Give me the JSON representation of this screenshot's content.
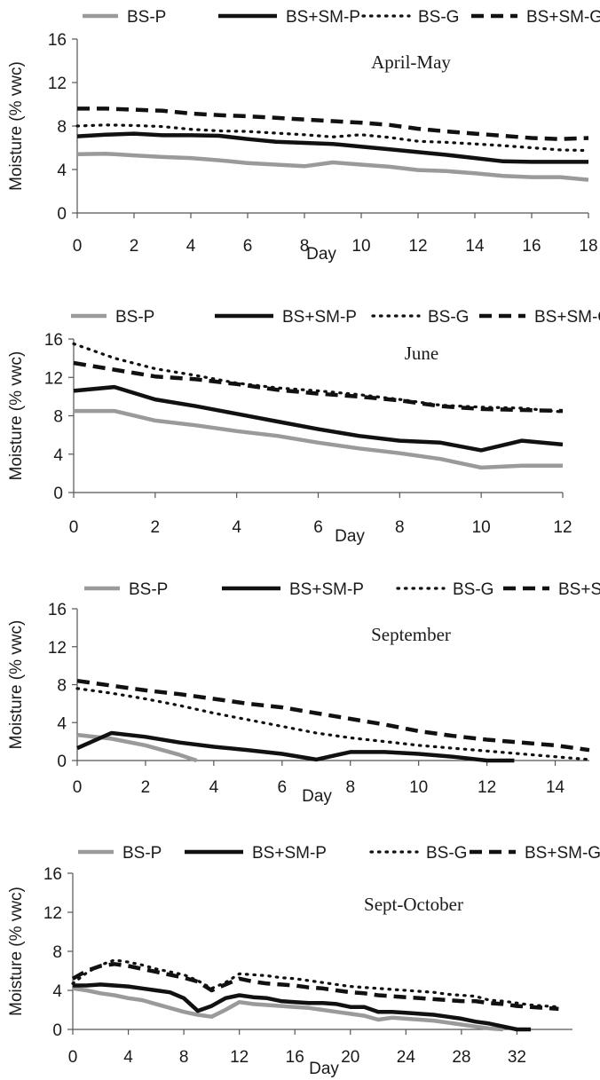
{
  "chart_data": [
    {
      "type": "line",
      "title": "April-May",
      "xlabel": "Day",
      "ylabel": "Moisture (% vwc)",
      "xlim": [
        0,
        18
      ],
      "ylim": [
        0,
        16
      ],
      "xticks": [
        0,
        2,
        4,
        6,
        8,
        10,
        12,
        14,
        16,
        18
      ],
      "yticks": [
        0,
        4,
        8,
        12,
        16
      ],
      "legend_position": "top",
      "series": [
        {
          "name": "BS-P",
          "x": [
            0,
            1,
            2,
            3,
            4,
            5,
            6,
            7,
            8,
            9,
            10,
            11,
            12,
            13,
            14,
            15,
            16,
            17,
            18
          ],
          "values": [
            5.4,
            5.45,
            5.3,
            5.15,
            5.05,
            4.85,
            4.6,
            4.45,
            4.3,
            4.65,
            4.45,
            4.25,
            3.95,
            3.85,
            3.65,
            3.4,
            3.3,
            3.3,
            3.05
          ]
        },
        {
          "name": "BS+SM-P",
          "x": [
            0,
            1,
            2,
            3,
            4,
            5,
            6,
            7,
            8,
            9,
            10,
            11,
            12,
            13,
            14,
            15,
            16,
            17,
            18
          ],
          "values": [
            7.05,
            7.2,
            7.3,
            7.15,
            7.15,
            7.1,
            6.8,
            6.55,
            6.45,
            6.35,
            6.1,
            5.85,
            5.6,
            5.35,
            5.05,
            4.75,
            4.7,
            4.7,
            4.7
          ]
        },
        {
          "name": "BS-G",
          "x": [
            0,
            1,
            2,
            3,
            4,
            5,
            6,
            7,
            8,
            9,
            10,
            11,
            12,
            13,
            14,
            15,
            16,
            17,
            18
          ],
          "values": [
            8.0,
            8.1,
            8.05,
            7.95,
            7.7,
            7.55,
            7.5,
            7.35,
            7.2,
            7.0,
            7.2,
            6.95,
            6.6,
            6.5,
            6.35,
            6.2,
            6.0,
            5.8,
            5.75
          ]
        },
        {
          "name": "BS+SM-G",
          "x": [
            0,
            1,
            2,
            3,
            4,
            5,
            6,
            7,
            8,
            9,
            10,
            11,
            12,
            13,
            14,
            15,
            16,
            17,
            18
          ],
          "values": [
            9.6,
            9.6,
            9.5,
            9.4,
            9.15,
            9.0,
            8.9,
            8.75,
            8.6,
            8.45,
            8.3,
            8.1,
            7.75,
            7.5,
            7.3,
            7.1,
            6.9,
            6.8,
            6.9
          ]
        }
      ]
    },
    {
      "type": "line",
      "title": "June",
      "xlabel": "Day",
      "ylabel": "Moisture (% vwc)",
      "xlim": [
        0,
        12
      ],
      "ylim": [
        0,
        16
      ],
      "xticks": [
        0,
        2,
        4,
        6,
        8,
        10,
        12
      ],
      "yticks": [
        0,
        4,
        8,
        12,
        16
      ],
      "legend_position": "top",
      "series": [
        {
          "name": "BS-P",
          "x": [
            0,
            1,
            2,
            3,
            4,
            5,
            6,
            7,
            8,
            9,
            10,
            11,
            12
          ],
          "values": [
            8.5,
            8.5,
            7.5,
            7.0,
            6.4,
            5.9,
            5.2,
            4.6,
            4.1,
            3.5,
            2.6,
            2.8,
            2.8
          ]
        },
        {
          "name": "BS+SM-P",
          "x": [
            0,
            1,
            2,
            3,
            4,
            5,
            6,
            7,
            8,
            9,
            10,
            11,
            12
          ],
          "values": [
            10.6,
            11.0,
            9.7,
            9.0,
            8.2,
            7.4,
            6.6,
            5.9,
            5.4,
            5.2,
            4.4,
            5.4,
            5.0
          ]
        },
        {
          "name": "BS-G",
          "x": [
            0,
            1,
            2,
            3,
            4,
            5,
            6,
            7,
            8,
            9,
            10,
            11,
            12
          ],
          "values": [
            15.5,
            14.0,
            12.9,
            12.2,
            11.4,
            10.9,
            10.6,
            10.2,
            9.7,
            9.1,
            8.9,
            8.8,
            8.4
          ]
        },
        {
          "name": "BS+SM-G",
          "x": [
            0,
            1,
            2,
            3,
            4,
            5,
            6,
            7,
            8,
            9,
            10,
            11,
            12
          ],
          "values": [
            13.5,
            12.8,
            12.1,
            11.8,
            11.3,
            10.7,
            10.3,
            10.0,
            9.6,
            9.0,
            8.7,
            8.6,
            8.5
          ]
        }
      ]
    },
    {
      "type": "line",
      "title": "September",
      "xlabel": "Day",
      "ylabel": "Moisture (% vwc)",
      "xlim": [
        0,
        15
      ],
      "ylim": [
        0,
        16
      ],
      "xticks": [
        0,
        2,
        4,
        6,
        8,
        10,
        12,
        14
      ],
      "yticks": [
        0,
        4,
        8,
        12,
        16
      ],
      "legend_position": "top",
      "series": [
        {
          "name": "BS-P",
          "x": [
            0,
            1,
            2,
            3,
            3.5
          ],
          "values": [
            2.7,
            2.3,
            1.6,
            0.6,
            0
          ]
        },
        {
          "name": "BS+SM-P",
          "x": [
            0,
            1,
            2,
            3,
            4,
            5,
            6,
            7,
            8,
            9,
            10,
            11,
            12,
            12.8
          ],
          "values": [
            1.3,
            2.9,
            2.5,
            1.9,
            1.45,
            1.1,
            0.7,
            0.1,
            0.9,
            0.9,
            0.7,
            0.4,
            0,
            0
          ]
        },
        {
          "name": "BS-G",
          "x": [
            0,
            1,
            2,
            3,
            4,
            5,
            6,
            7,
            8,
            9,
            10,
            11,
            12,
            13,
            14,
            15
          ],
          "values": [
            7.6,
            7.1,
            6.5,
            5.8,
            5.0,
            4.3,
            3.6,
            2.9,
            2.4,
            2.0,
            1.6,
            1.3,
            1.0,
            0.7,
            0.4,
            0.1
          ]
        },
        {
          "name": "BS+SM-G",
          "x": [
            0,
            1,
            2,
            3,
            4,
            5,
            6,
            7,
            8,
            9,
            10,
            11,
            12,
            13,
            14,
            15
          ],
          "values": [
            8.4,
            7.9,
            7.4,
            7.0,
            6.5,
            6.0,
            5.6,
            5.0,
            4.4,
            3.8,
            3.1,
            2.6,
            2.2,
            1.9,
            1.6,
            1.1
          ]
        }
      ]
    },
    {
      "type": "line",
      "title": "Sept-October",
      "xlabel": "Day",
      "ylabel": "Moisture (% vwc)",
      "xlim": [
        0,
        36
      ],
      "ylim": [
        0,
        16
      ],
      "xticks": [
        0,
        4,
        8,
        12,
        16,
        20,
        24,
        28,
        32
      ],
      "yticks": [
        0,
        4,
        8,
        12,
        16
      ],
      "legend_position": "top",
      "series": [
        {
          "name": "BS-P",
          "x": [
            0,
            1,
            2,
            3,
            4,
            5,
            6,
            7,
            8,
            9,
            10,
            11,
            12,
            13,
            14,
            15,
            16,
            17,
            18,
            19,
            20,
            21,
            22,
            23,
            24,
            25,
            26,
            27,
            28,
            29,
            30,
            31
          ],
          "values": [
            4.2,
            4.0,
            3.7,
            3.5,
            3.2,
            3.0,
            2.6,
            2.2,
            1.8,
            1.5,
            1.3,
            2.0,
            2.8,
            2.6,
            2.5,
            2.4,
            2.3,
            2.2,
            2.0,
            1.8,
            1.6,
            1.4,
            1.0,
            1.2,
            1.1,
            1.0,
            0.9,
            0.7,
            0.5,
            0.3,
            0.1,
            0
          ]
        },
        {
          "name": "BS+SM-P",
          "x": [
            0,
            1,
            2,
            3,
            4,
            5,
            6,
            7,
            8,
            9,
            10,
            11,
            12,
            13,
            14,
            15,
            16,
            17,
            18,
            19,
            20,
            21,
            22,
            23,
            24,
            25,
            26,
            27,
            28,
            29,
            30,
            31,
            32,
            33
          ],
          "values": [
            4.5,
            4.5,
            4.6,
            4.5,
            4.4,
            4.2,
            4.0,
            3.8,
            3.2,
            1.9,
            2.4,
            3.2,
            3.5,
            3.3,
            3.2,
            2.9,
            2.8,
            2.7,
            2.7,
            2.6,
            2.3,
            2.3,
            1.8,
            1.8,
            1.7,
            1.6,
            1.5,
            1.3,
            1.1,
            0.8,
            0.6,
            0.3,
            0,
            0
          ]
        },
        {
          "name": "BS-G",
          "x": [
            0,
            1,
            2,
            3,
            4,
            5,
            6,
            7,
            8,
            9,
            10,
            11,
            12,
            13,
            14,
            15,
            16,
            17,
            18,
            19,
            20,
            21,
            22,
            23,
            24,
            25,
            26,
            27,
            28,
            29,
            30,
            31,
            32,
            33,
            34,
            35
          ],
          "values": [
            4.7,
            5.8,
            6.6,
            7.1,
            6.9,
            6.6,
            6.2,
            5.9,
            5.6,
            5.0,
            4.2,
            4.8,
            5.7,
            5.6,
            5.5,
            5.3,
            5.2,
            5.0,
            4.8,
            4.6,
            4.4,
            4.3,
            4.2,
            4.1,
            4.0,
            3.9,
            3.8,
            3.6,
            3.5,
            3.4,
            3.0,
            2.9,
            2.7,
            2.5,
            2.4,
            2.3
          ]
        },
        {
          "name": "BS+SM-G",
          "x": [
            0,
            1,
            2,
            3,
            4,
            5,
            6,
            7,
            8,
            9,
            10,
            11,
            12,
            13,
            14,
            15,
            16,
            17,
            18,
            19,
            20,
            21,
            22,
            23,
            24,
            25,
            26,
            27,
            28,
            29,
            30,
            31,
            32,
            33,
            34,
            35
          ],
          "values": [
            5.2,
            6.0,
            6.5,
            6.7,
            6.5,
            6.2,
            5.9,
            5.6,
            5.3,
            4.9,
            4.0,
            4.6,
            5.2,
            4.9,
            4.7,
            4.6,
            4.5,
            4.3,
            4.2,
            4.0,
            3.8,
            3.7,
            3.5,
            3.4,
            3.3,
            3.2,
            3.1,
            3.0,
            2.9,
            2.9,
            2.7,
            2.6,
            2.4,
            2.3,
            2.2,
            2.1
          ]
        }
      ]
    }
  ],
  "styles": {
    "BS-P": {
      "color": "#9a9a9a",
      "dash": "solid",
      "width": 4.5
    },
    "BS+SM-P": {
      "color": "#111111",
      "dash": "solid",
      "width": 4.5
    },
    "BS-G": {
      "color": "#111111",
      "dash": "dotted",
      "width": 3.2
    },
    "BS+SM-G": {
      "color": "#111111",
      "dash": "dashed",
      "width": 4.5
    }
  }
}
